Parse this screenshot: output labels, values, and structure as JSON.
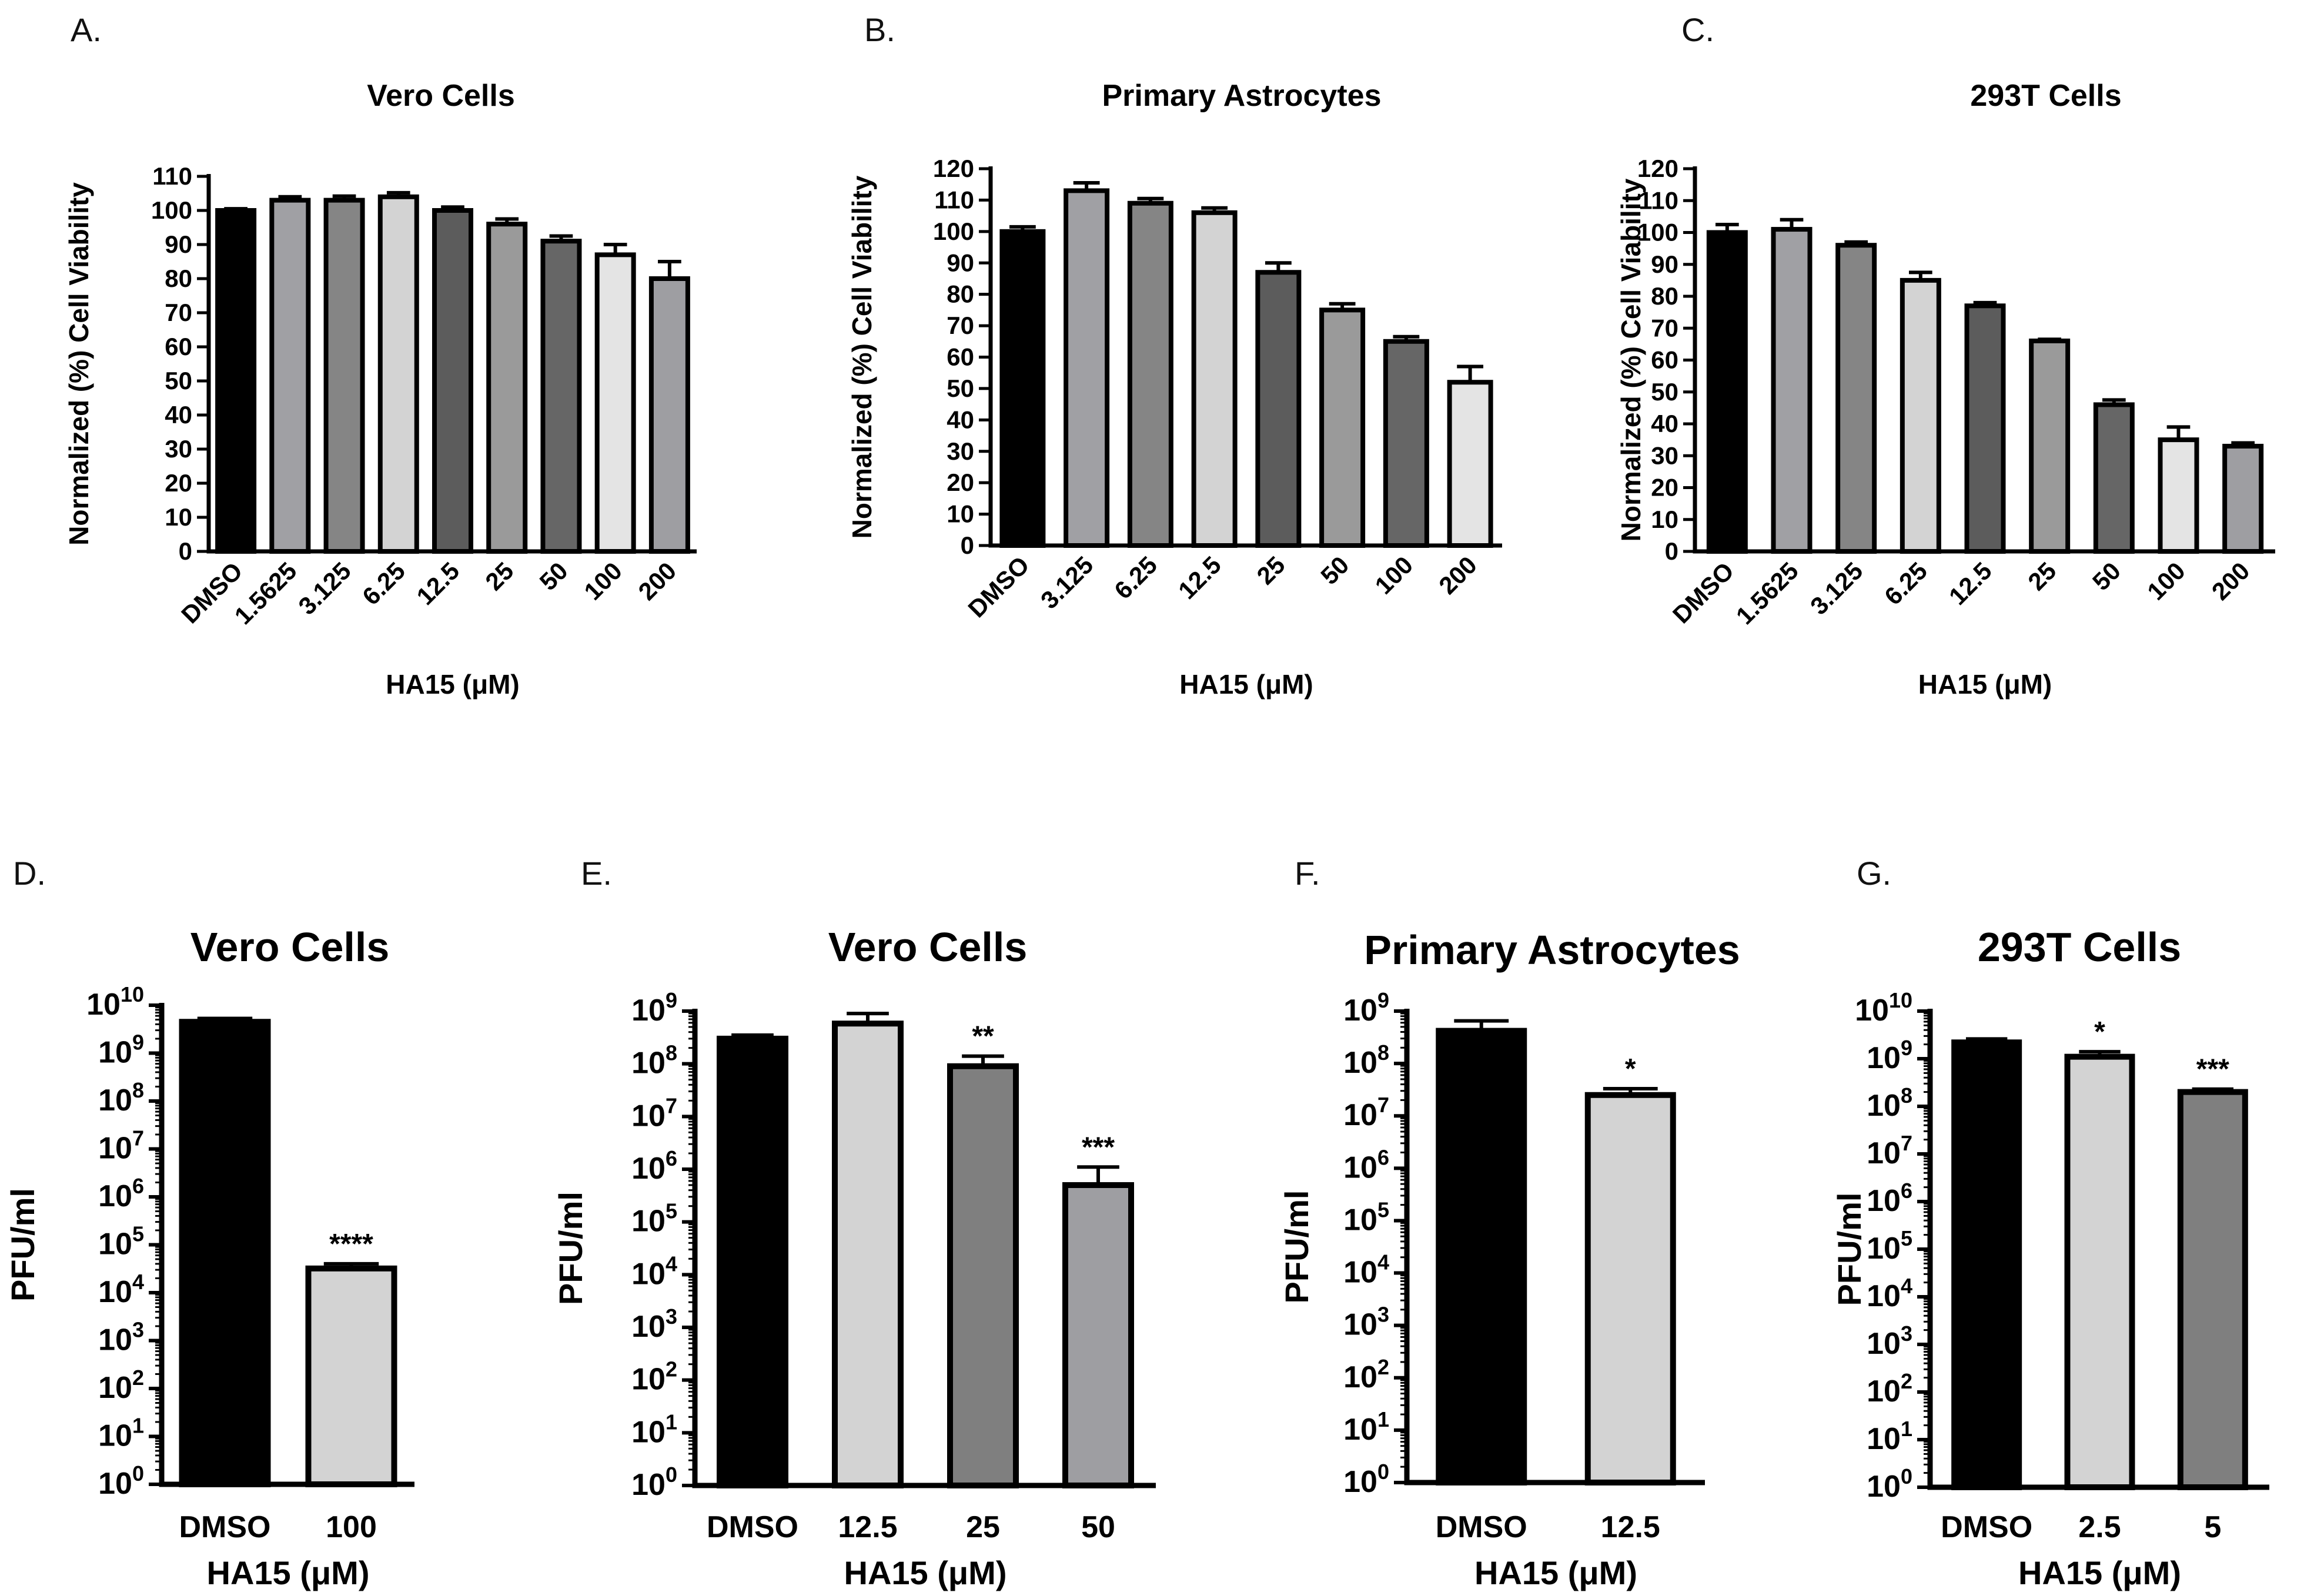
{
  "chart_data": [
    {
      "panel": "A.",
      "type": "bar",
      "title": "Vero Cells",
      "xlabel": "HA15 (μM)",
      "ylabel": "Normalized (%) Cell Viability",
      "yscale": "linear",
      "ylim": [
        0,
        110
      ],
      "yticks": [
        0,
        10,
        20,
        30,
        40,
        50,
        60,
        70,
        80,
        90,
        100,
        110
      ],
      "ytick_labels": [
        "0",
        "10",
        "20",
        "30",
        "40",
        "50",
        "60",
        "70",
        "80",
        "90",
        "100",
        "110"
      ],
      "categories": [
        "DMSO",
        "1.5625",
        "3.125",
        "6.25",
        "12.5",
        "25",
        "50",
        "100",
        "200"
      ],
      "values": [
        100,
        103,
        103,
        104,
        100,
        96,
        91,
        87,
        80
      ],
      "errors": [
        0.5,
        1,
        1.2,
        1.2,
        1,
        1.5,
        1.5,
        3,
        5
      ],
      "colors": [
        "#000000",
        "#a0a0a4",
        "#858585",
        "#d3d3d3",
        "#5c5c5c",
        "#9a9a9a",
        "#666666",
        "#e4e4e4",
        "#9e9ea2"
      ],
      "significance": [
        "",
        "",
        "",
        "",
        "",
        "",
        "",
        "",
        ""
      ]
    },
    {
      "panel": "B.",
      "type": "bar",
      "title": "Primary Astrocytes",
      "xlabel": "HA15 (μM)",
      "ylabel": "Normalized (%) Cell Viability",
      "yscale": "linear",
      "ylim": [
        0,
        120
      ],
      "yticks": [
        0,
        10,
        20,
        30,
        40,
        50,
        60,
        70,
        80,
        90,
        100,
        110,
        120
      ],
      "ytick_labels": [
        "0",
        "10",
        "20",
        "30",
        "40",
        "50",
        "60",
        "70",
        "80",
        "90",
        "100",
        "110",
        "120"
      ],
      "categories": [
        "DMSO",
        "3.125",
        "6.25",
        "12.5",
        "25",
        "50",
        "100",
        "200"
      ],
      "values": [
        100,
        113,
        109,
        106,
        87,
        75,
        65,
        52
      ],
      "errors": [
        1.5,
        2.5,
        1.5,
        1.5,
        3,
        2,
        1.5,
        5
      ],
      "colors": [
        "#000000",
        "#a0a0a4",
        "#858585",
        "#d3d3d3",
        "#5c5c5c",
        "#9a9a9a",
        "#666666",
        "#e4e4e4"
      ],
      "significance": [
        "",
        "",
        "",
        "",
        "",
        "",
        "",
        ""
      ]
    },
    {
      "panel": "C.",
      "type": "bar",
      "title": "293T Cells",
      "xlabel": "HA15 (μM)",
      "ylabel": "Normalized (%) Cell Viability",
      "yscale": "linear",
      "ylim": [
        0,
        120
      ],
      "yticks": [
        0,
        10,
        20,
        30,
        40,
        50,
        60,
        70,
        80,
        90,
        100,
        110,
        120
      ],
      "ytick_labels": [
        "0",
        "10",
        "20",
        "30",
        "40",
        "50",
        "60",
        "70",
        "80",
        "90",
        "100",
        "110",
        "120"
      ],
      "categories": [
        "DMSO",
        "1.5625",
        "3.125",
        "6.25",
        "12.5",
        "25",
        "50",
        "100",
        "200"
      ],
      "values": [
        100,
        101,
        96,
        85,
        77,
        66,
        46,
        35,
        33
      ],
      "errors": [
        2.5,
        3,
        1,
        2.5,
        1,
        0.5,
        1.5,
        4,
        1
      ],
      "colors": [
        "#000000",
        "#a0a0a4",
        "#858585",
        "#d3d3d3",
        "#5c5c5c",
        "#9a9a9a",
        "#666666",
        "#e4e4e4",
        "#9e9ea2"
      ],
      "significance": [
        "",
        "",
        "",
        "",
        "",
        "",
        "",
        "",
        ""
      ]
    },
    {
      "panel": "D.",
      "type": "bar",
      "title": "Vero Cells",
      "xlabel": "HA15 (μM)",
      "ylabel": "PFU/ml",
      "yscale": "log10",
      "ylim": [
        1,
        10000000000
      ],
      "ytick_exponents": [
        0,
        1,
        2,
        3,
        4,
        5,
        6,
        7,
        8,
        9,
        10
      ],
      "ytick_base": "10",
      "categories": [
        "DMSO",
        "100"
      ],
      "values": [
        4500000000,
        32000
      ],
      "errors_upper": [
        5300000000,
        40000
      ],
      "colors": [
        "#000000",
        "#d3d3d3"
      ],
      "significance": [
        "",
        "****"
      ]
    },
    {
      "panel": "E.",
      "type": "bar",
      "title": "Vero Cells",
      "xlabel": "HA15 (μM)",
      "ylabel": "PFU/ml",
      "yscale": "log10",
      "ylim": [
        1,
        1000000000
      ],
      "ytick_exponents": [
        0,
        1,
        2,
        3,
        4,
        5,
        6,
        7,
        8,
        9
      ],
      "ytick_base": "10",
      "categories": [
        "DMSO",
        "12.5",
        "25",
        "50"
      ],
      "values": [
        300000000,
        580000000,
        90000000,
        500000
      ],
      "errors_upper": [
        350000000,
        900000000,
        140000000,
        1100000
      ],
      "colors": [
        "#000000",
        "#d3d3d3",
        "#7f7f7f",
        "#9e9ea2"
      ],
      "significance": [
        "",
        "",
        "**",
        "***"
      ]
    },
    {
      "panel": "F.",
      "type": "bar",
      "title": "Primary Astrocytes",
      "xlabel": "HA15 (μM)",
      "ylabel": "PFU/ml",
      "yscale": "log10",
      "ylim": [
        1,
        1000000000
      ],
      "ytick_exponents": [
        0,
        1,
        2,
        3,
        4,
        5,
        6,
        7,
        8,
        9
      ],
      "ytick_base": "10",
      "categories": [
        "DMSO",
        "12.5"
      ],
      "values": [
        420000000,
        25000000
      ],
      "errors_upper": [
        650000000,
        33000000
      ],
      "colors": [
        "#000000",
        "#d3d3d3"
      ],
      "significance": [
        "",
        "*"
      ]
    },
    {
      "panel": "G.",
      "type": "bar",
      "title": "293T Cells",
      "xlabel": "HA15 (μM)",
      "ylabel": "PFU/ml",
      "yscale": "log10",
      "ylim": [
        1,
        10000000000
      ],
      "ytick_exponents": [
        0,
        1,
        2,
        3,
        4,
        5,
        6,
        7,
        8,
        9,
        10
      ],
      "ytick_base": "10",
      "categories": [
        "DMSO",
        "2.5",
        "5"
      ],
      "values": [
        2200000000,
        1100000000,
        200000000
      ],
      "errors_upper": [
        2600000000,
        1400000000,
        230000000
      ],
      "colors": [
        "#000000",
        "#d3d3d3",
        "#7f7f7f"
      ],
      "significance": [
        "",
        "*",
        "***"
      ]
    }
  ]
}
